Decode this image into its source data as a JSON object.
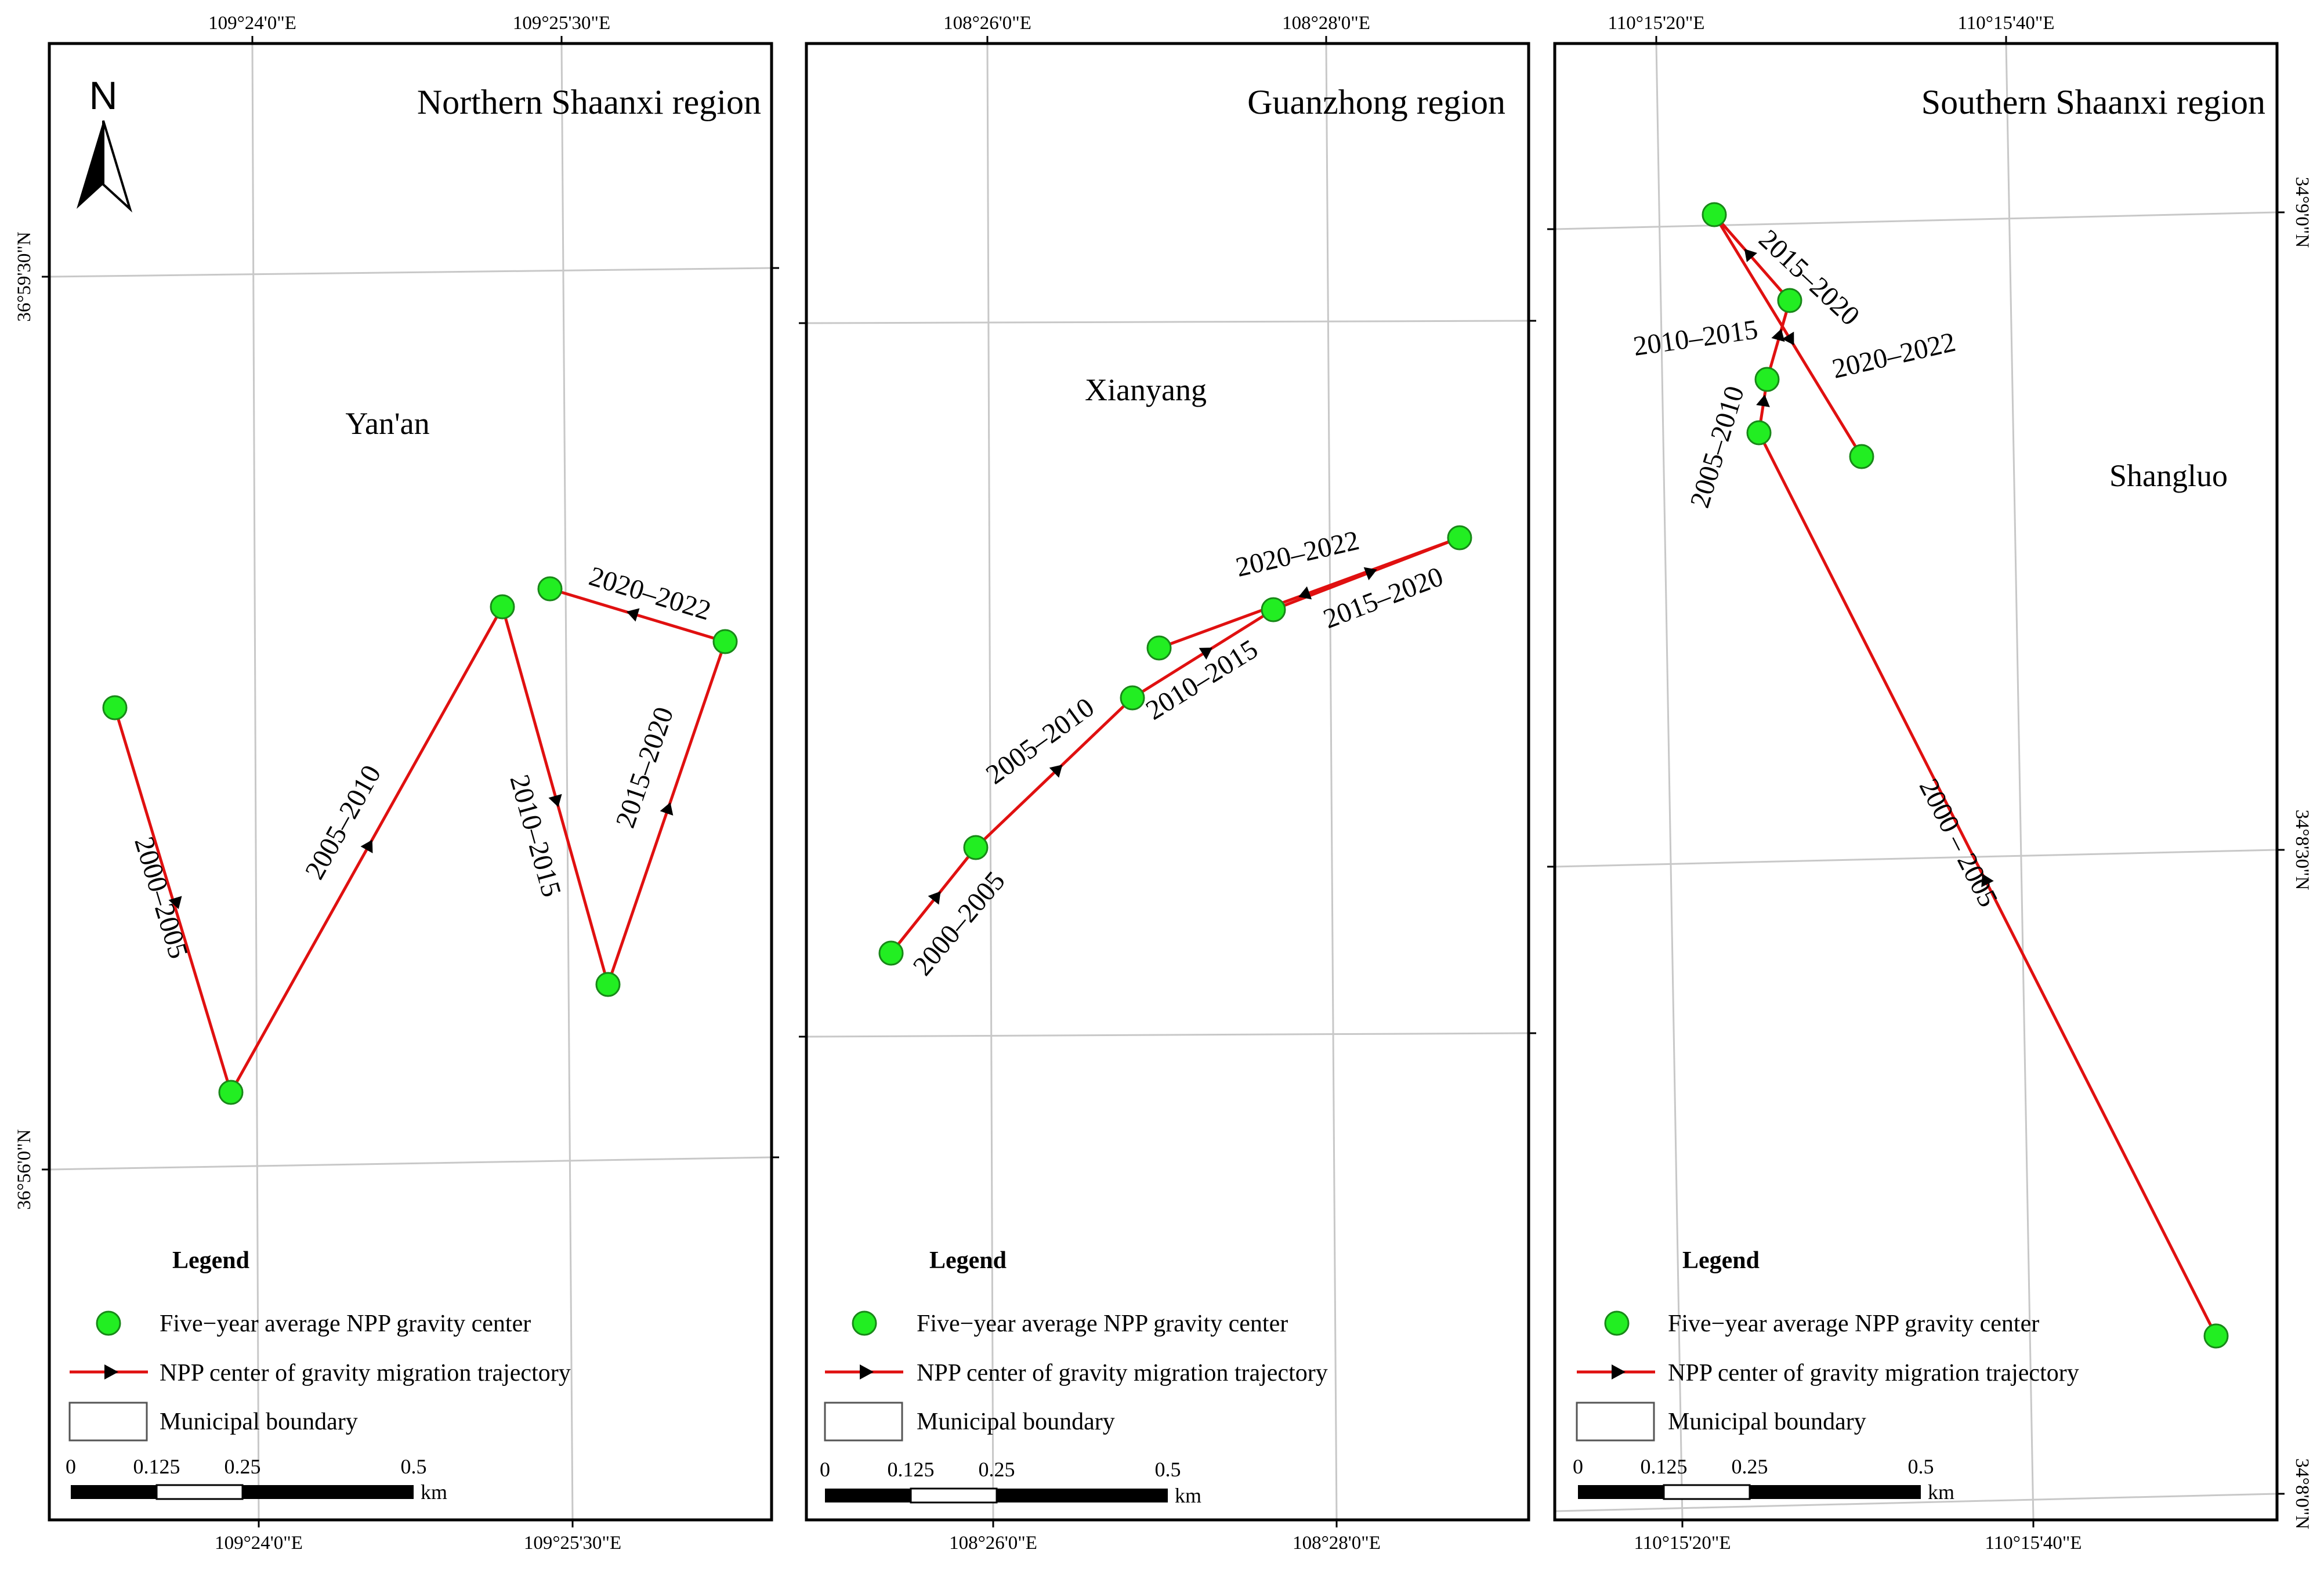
{
  "panels": [
    {
      "id": "north",
      "title": "Northern Shaanxi region",
      "city": "Yan'an",
      "top_ticks": [
        "109°24'0\"E",
        "109°25'30\"E"
      ],
      "bottom_ticks": [
        "109°24'0\"E",
        "109°25'30\"E"
      ],
      "left_ticks": [
        "36°59'30\"N",
        "36°56'0\"N"
      ],
      "right_ticks": [],
      "segments": [
        "2000–2005",
        "2005–2010",
        "2010–2015",
        "2015–2020",
        "2020–2022"
      ]
    },
    {
      "id": "guanzhong",
      "title": "Guanzhong region",
      "city": "Xianyang",
      "top_ticks": [
        "108°26'0\"E",
        "108°28'0\"E"
      ],
      "bottom_ticks": [
        "108°26'0\"E",
        "108°28'0\"E"
      ],
      "left_ticks": [],
      "right_ticks": [],
      "segments": [
        "2000–2005",
        "2005–2010",
        "2010–2015",
        "2015–2020",
        "2020–2022"
      ]
    },
    {
      "id": "south",
      "title": "Southern Shaanxi region",
      "city": "Shangluo",
      "top_ticks": [
        "110°15'20\"E",
        "110°15'40\"E"
      ],
      "bottom_ticks": [
        "110°15'20\"E",
        "110°15'40\"E"
      ],
      "left_ticks": [],
      "right_ticks": [
        "34°9'0\"N",
        "34°8'30\"N",
        "34°8'0\"N"
      ],
      "segments": [
        "2000 – 2005",
        "2005–2010",
        "2010–2015",
        "2015–2020",
        "2020–2022"
      ]
    }
  ],
  "north_arrow": "N",
  "legend": {
    "title": "Legend",
    "items": [
      "Five−year average NPP gravity center",
      "NPP center of gravity migration trajectory",
      "Municipal boundary"
    ]
  },
  "scale_bar": {
    "labels": [
      "0",
      "0.125",
      "0.25",
      "0.5"
    ],
    "unit": "km"
  },
  "colors": {
    "point": "#22ee22",
    "trajectory": "#e01010",
    "frame": "#000000",
    "grid": "#c8c8c8"
  }
}
